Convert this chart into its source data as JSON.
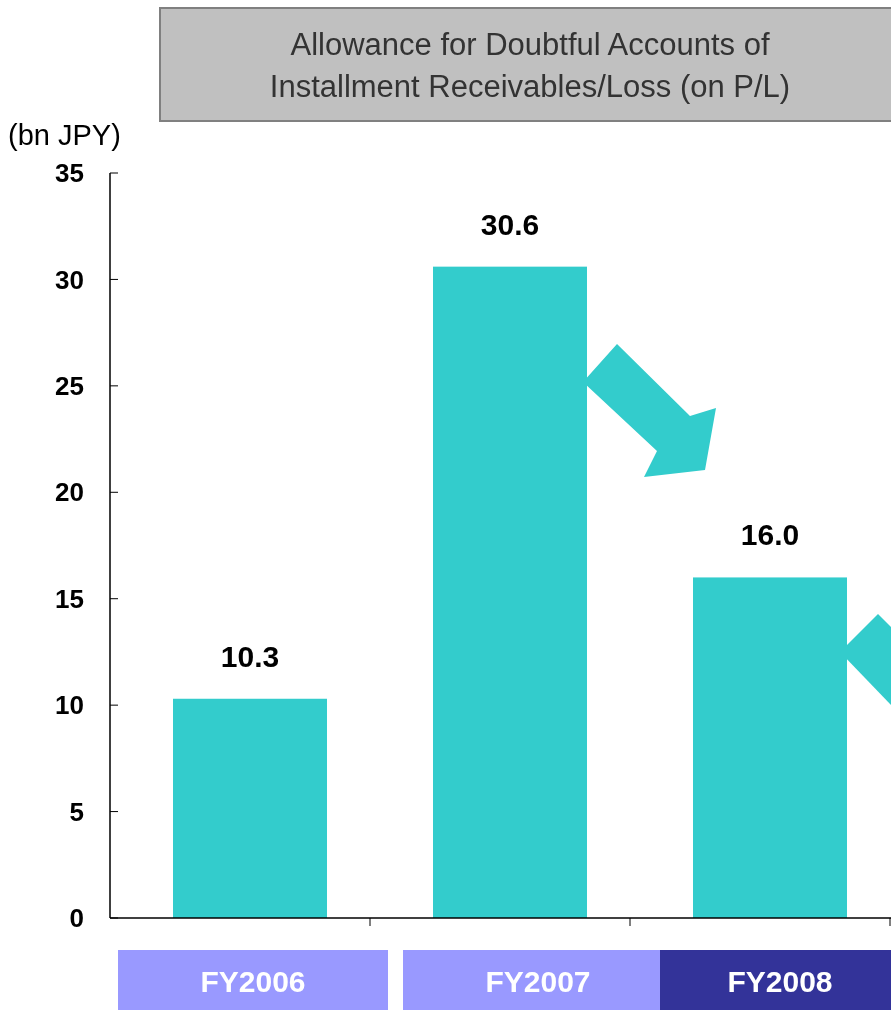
{
  "chart_data": {
    "type": "bar",
    "title": "Allowance for Doubtful Accounts of Installment Receivables/Loss (on P/L)",
    "ylabel": "(bn JPY)",
    "categories": [
      "FY2006",
      "FY2007",
      "FY2008"
    ],
    "values": [
      10.3,
      30.6,
      16.0
    ],
    "color": "#33cccc",
    "value_labels": [
      "10.3",
      "30.6",
      "16.0"
    ],
    "ylim": [
      0,
      35
    ],
    "yticks": [
      0,
      5,
      10,
      15,
      20,
      25,
      30,
      35
    ],
    "grid": false
  }
}
